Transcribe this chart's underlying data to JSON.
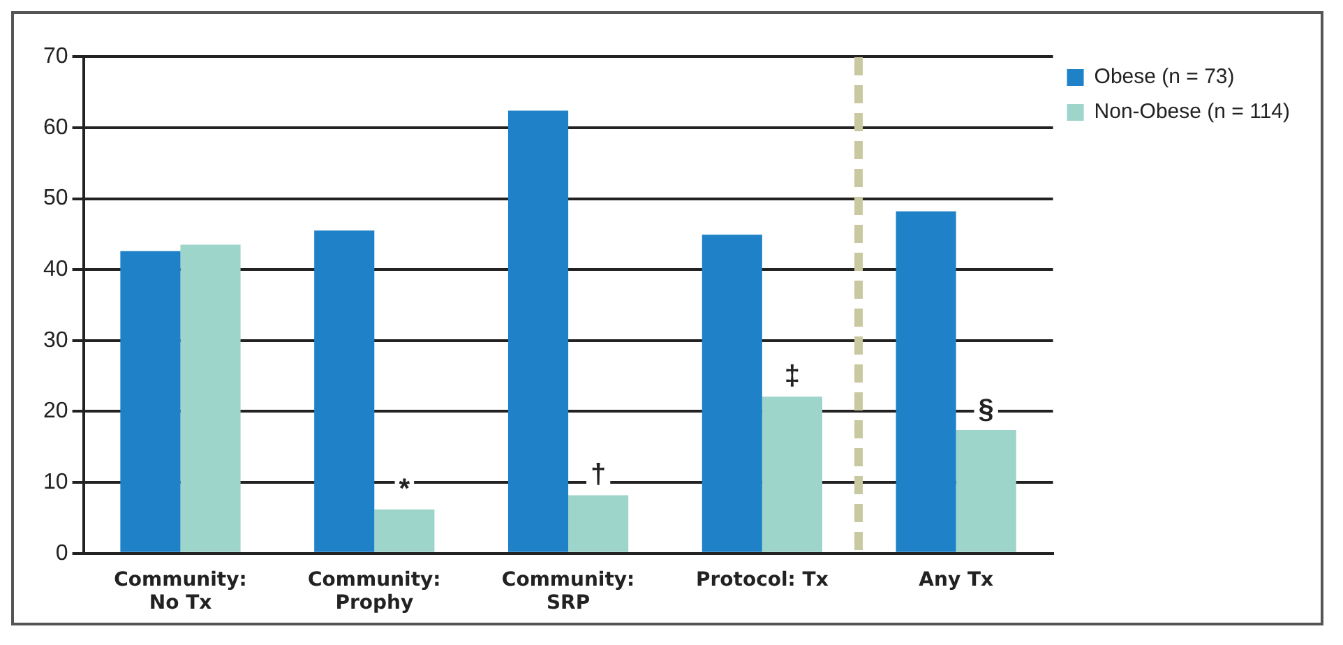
{
  "chart_data": {
    "type": "bar",
    "categories": [
      "Community:\nNo Tx",
      "Community:\nProphy",
      "Community:\nSRP",
      "Protocol: Tx",
      "Any Tx"
    ],
    "series": [
      {
        "name": "Obese (n = 73)",
        "color": "#1f82c8",
        "values": [
          42.6,
          45.5,
          62.4,
          44.9,
          48.2
        ]
      },
      {
        "name": "Non-Obese (n = 114)",
        "color": "#9dd5cb",
        "values": [
          43.5,
          6.2,
          8.2,
          22.1,
          17.4
        ]
      }
    ],
    "ylim": [
      0,
      70
    ],
    "yticks": [
      0,
      10,
      20,
      30,
      40,
      50,
      60,
      70
    ],
    "grid": "y",
    "legend": "top right",
    "annotations": [
      {
        "text": "*",
        "x": "Community:\nProphy",
        "y": 6.2
      },
      {
        "text": "†",
        "x": "Community:\nSRP",
        "y": 8.2
      },
      {
        "text": "‡",
        "x": "Protocol: Tx",
        "y": 22.1
      },
      {
        "text": "§",
        "x": "Any Tx",
        "y": 17.4
      }
    ]
  }
}
